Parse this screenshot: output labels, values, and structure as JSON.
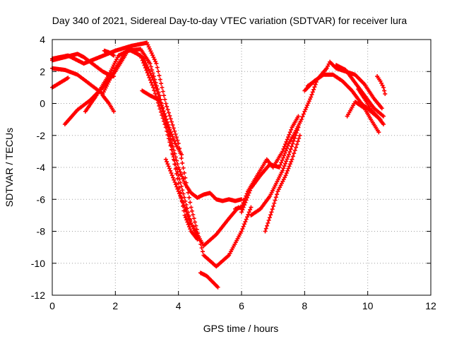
{
  "chart_data": {
    "type": "scatter",
    "title": "Day 340 of 2021, Sidereal Day-to-day VTEC variation (SDTVAR) for receiver lura",
    "xlabel": "GPS time / hours",
    "ylabel": "SDTVAR / TECUs",
    "xlim": [
      0,
      12
    ],
    "ylim": [
      -12,
      4
    ],
    "x_ticks": [
      0,
      2,
      4,
      6,
      8,
      10,
      12
    ],
    "y_ticks": [
      -12,
      -10,
      -8,
      -6,
      -4,
      -2,
      0,
      2,
      4
    ],
    "x_tick_labels": [
      "0",
      "2",
      "4",
      "6",
      "8",
      "10",
      "12"
    ],
    "y_tick_labels": [
      "-12",
      "-10",
      "-8",
      "-6",
      "-4",
      "-2",
      "0",
      "2",
      "4"
    ],
    "grid": true,
    "marker": "+",
    "series_color": "#ff0000",
    "series": [
      {
        "x": [
          0.0,
          0.4,
          0.8,
          1.2,
          1.6,
          2.0,
          2.4,
          2.8,
          3.2,
          3.6,
          4.0,
          4.4,
          4.8,
          5.2,
          5.6,
          5.9
        ],
        "y": [
          2.2,
          2.1,
          1.8,
          1.2,
          0.6,
          2.2,
          3.4,
          3.0,
          1.0,
          -1.5,
          -4.5,
          -7.5,
          -8.9,
          -8.2,
          -7.2,
          -6.5
        ]
      },
      {
        "x": [
          0.0,
          0.5,
          1.0,
          1.5,
          2.0,
          2.5,
          3.0,
          3.3,
          3.6,
          4.0,
          4.4,
          4.8,
          5.2,
          5.6,
          6.0,
          6.3
        ],
        "y": [
          2.8,
          3.0,
          2.5,
          2.9,
          3.3,
          3.6,
          3.8,
          2.5,
          0.0,
          -2.5,
          -6.5,
          -9.5,
          -10.2,
          -9.5,
          -8.0,
          -6.5
        ]
      },
      {
        "x": [
          0.0,
          0.2,
          0.4,
          0.6,
          0.8,
          1.0,
          1.2,
          1.4,
          1.6,
          1.8,
          1.95
        ],
        "y": [
          2.7,
          2.8,
          2.9,
          3.0,
          3.1,
          2.9,
          2.6,
          2.3,
          2.0,
          1.8,
          1.7
        ]
      },
      {
        "x": [
          0.0,
          0.25,
          0.5
        ],
        "y": [
          1.0,
          1.3,
          1.6
        ]
      },
      {
        "x": [
          0.4,
          0.8,
          1.2,
          1.6,
          2.0,
          2.4,
          2.8,
          3.1,
          3.4,
          3.7,
          4.0,
          4.2,
          4.4,
          4.6
        ],
        "y": [
          -1.3,
          -0.4,
          0.2,
          1.0,
          2.0,
          3.3,
          3.4,
          2.5,
          0.5,
          -2.0,
          -5.0,
          -7.0,
          -8.0,
          -8.5
        ]
      },
      {
        "x": [
          1.05,
          1.4,
          1.8,
          2.1,
          2.5,
          2.9,
          3.2,
          3.5,
          3.7,
          3.9,
          4.1
        ],
        "y": [
          -0.5,
          0.5,
          1.8,
          3.0,
          3.4,
          2.8,
          1.5,
          -0.3,
          -1.5,
          -2.5,
          -3.2
        ]
      },
      {
        "x": [
          1.6,
          1.8,
          1.95
        ],
        "y": [
          0.5,
          0.0,
          -0.5
        ]
      },
      {
        "x": [
          1.65,
          1.8,
          1.95
        ],
        "y": [
          3.3,
          3.2,
          3.0
        ]
      },
      {
        "x": [
          2.85,
          3.1,
          3.4,
          3.6,
          3.8,
          4.0,
          4.2,
          4.4,
          4.6,
          4.8,
          5.0,
          5.2,
          5.4,
          5.6,
          5.8,
          6.0
        ],
        "y": [
          0.8,
          0.5,
          0.2,
          -1.0,
          -2.5,
          -4.0,
          -5.0,
          -5.6,
          -5.9,
          -5.7,
          -5.6,
          -6.0,
          -6.1,
          -6.0,
          -6.1,
          -6.0
        ]
      },
      {
        "x": [
          3.6,
          3.8,
          4.0,
          4.2,
          4.4,
          4.6
        ],
        "y": [
          -3.5,
          -4.5,
          -5.5,
          -6.5,
          -7.5,
          -8.3
        ]
      },
      {
        "x": [
          4.7,
          4.9,
          5.1,
          5.25
        ],
        "y": [
          -10.6,
          -10.8,
          -11.2,
          -11.5
        ]
      },
      {
        "x": [
          5.8,
          6.0,
          6.2,
          6.5,
          6.8,
          7.0,
          7.3,
          7.6,
          7.8
        ],
        "y": [
          -6.6,
          -6.5,
          -5.5,
          -4.5,
          -3.5,
          -4.0,
          -3.0,
          -1.5,
          -0.8
        ]
      },
      {
        "x": [
          6.0,
          6.3,
          6.6,
          6.9,
          7.2,
          7.5,
          7.7,
          7.9,
          8.0,
          8.2,
          8.4
        ],
        "y": [
          -6.8,
          -5.3,
          -4.5,
          -3.8,
          -4.0,
          -2.5,
          -1.8,
          -1.0,
          -0.5,
          0.4,
          1.5
        ]
      },
      {
        "x": [
          6.3,
          6.6,
          6.9,
          7.1,
          7.3,
          7.5,
          7.8
        ],
        "y": [
          -7.0,
          -6.6,
          -5.8,
          -5.0,
          -4.2,
          -3.2,
          -1.5
        ]
      },
      {
        "x": [
          6.75,
          6.95,
          7.15,
          7.4,
          7.6,
          7.85
        ],
        "y": [
          -8.0,
          -6.8,
          -5.5,
          -4.5,
          -3.5,
          -2.0
        ]
      },
      {
        "x": [
          8.0,
          8.3,
          8.6,
          8.9,
          9.2,
          9.5,
          9.8,
          10.1,
          10.4
        ],
        "y": [
          0.8,
          1.4,
          1.8,
          1.8,
          1.4,
          0.8,
          0.0,
          -0.5,
          -1.0
        ]
      },
      {
        "x": [
          8.1,
          8.4,
          8.7,
          8.8,
          9.0,
          9.3,
          9.6,
          9.9,
          10.2,
          10.45
        ],
        "y": [
          1.1,
          1.5,
          2.2,
          2.6,
          2.2,
          2.0,
          1.8,
          1.2,
          0.3,
          -0.3
        ]
      },
      {
        "x": [
          9.0,
          9.3,
          9.6,
          9.9,
          10.2,
          10.5
        ],
        "y": [
          2.4,
          2.1,
          1.3,
          0.5,
          -0.3,
          -0.8
        ]
      },
      {
        "x": [
          9.35,
          9.6,
          9.9,
          10.1,
          10.35
        ],
        "y": [
          -0.8,
          0.1,
          -0.3,
          -1.0,
          -1.8
        ]
      },
      {
        "x": [
          9.7,
          9.9,
          10.1,
          10.3,
          10.5
        ],
        "y": [
          0.9,
          0.3,
          -0.4,
          -0.8,
          -1.3
        ]
      },
      {
        "x": [
          10.3,
          10.4,
          10.5,
          10.55
        ],
        "y": [
          1.7,
          1.4,
          1.0,
          0.6
        ]
      }
    ]
  }
}
